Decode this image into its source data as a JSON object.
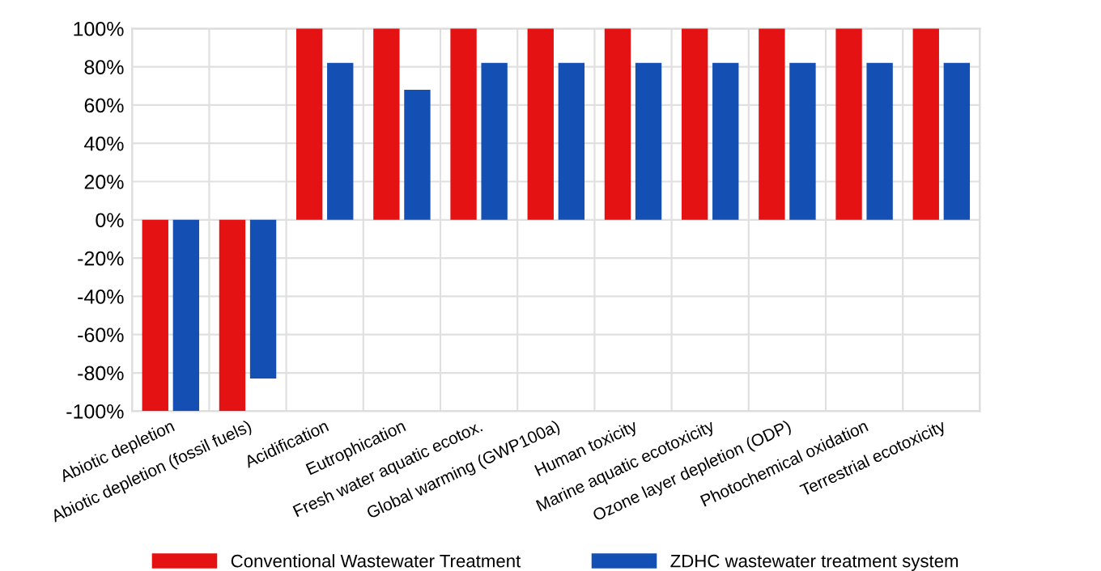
{
  "chart_data": {
    "type": "bar",
    "categories": [
      "Abiotic depletion",
      "Abiotic depletion (fossil fuels)",
      "Acidification",
      "Eutrophication",
      "Fresh water aquatic ecotox.",
      "Global warming (GWP100a)",
      "Human toxicity",
      "Marine aquatic ecotoxicity",
      "Ozone layer depletion (ODP)",
      "Photochemical oxidation",
      "Terrestrial ecotoxicity"
    ],
    "series": [
      {
        "name": "Conventional Wastewater Treatment",
        "color": "#e41212",
        "values": [
          -100,
          -100,
          100,
          100,
          100,
          100,
          100,
          100,
          100,
          100,
          100
        ]
      },
      {
        "name": "ZDHC wastewater treatment system",
        "color": "#1450b4",
        "values": [
          -100,
          -83,
          82,
          68,
          82,
          82,
          82,
          82,
          82,
          82,
          82
        ]
      }
    ],
    "ylim": [
      -100,
      100
    ],
    "yticks": [
      {
        "value": -100,
        "label": "-100%"
      },
      {
        "value": -80,
        "label": "-80%"
      },
      {
        "value": -60,
        "label": "-60%"
      },
      {
        "value": -40,
        "label": "-40%"
      },
      {
        "value": -20,
        "label": "-20%"
      },
      {
        "value": 0,
        "label": "0%"
      },
      {
        "value": 20,
        "label": "20%"
      },
      {
        "value": 40,
        "label": "40%"
      },
      {
        "value": 60,
        "label": "60%"
      },
      {
        "value": 80,
        "label": "80%"
      },
      {
        "value": 100,
        "label": "100%"
      }
    ],
    "grid": true,
    "legend": "bottom"
  }
}
